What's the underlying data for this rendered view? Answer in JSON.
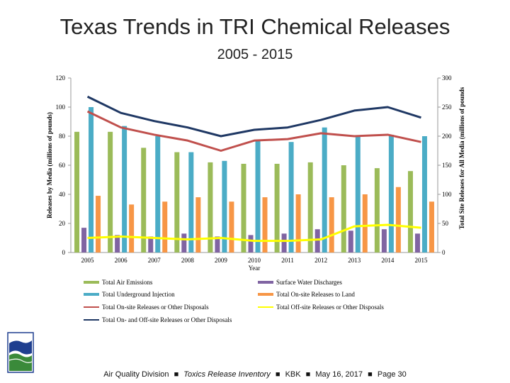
{
  "header": {
    "title": "Texas Trends in TRI Chemical Releases",
    "subtitle": "2005 - 2015"
  },
  "chart_data": {
    "type": "bar",
    "xlabel": "Year",
    "ylabel_left": "Releases by Media (millions of pounds)",
    "ylabel_right": "Total Site Releases for All Media (millions of pounds",
    "ylim_left": [
      0,
      120
    ],
    "ylim_right": [
      0,
      300
    ],
    "yticks_left": [
      "0",
      "20",
      "40",
      "60",
      "80",
      "100",
      "120"
    ],
    "yticks_right": [
      "0",
      "50",
      "100",
      "150",
      "200",
      "250",
      "300"
    ],
    "categories": [
      "2005",
      "2006",
      "2007",
      "2008",
      "2009",
      "2010",
      "2011",
      "2012",
      "2013",
      "2014",
      "2015"
    ],
    "bar_series": [
      {
        "name": "Total Air Emissions",
        "color": "#9bbb59",
        "values": [
          83,
          83,
          72,
          69,
          62,
          61,
          61,
          62,
          60,
          58,
          56
        ]
      },
      {
        "name": "Surface Water Discharges",
        "color": "#8064a2",
        "values": [
          17,
          12,
          11,
          13,
          11,
          12,
          13,
          16,
          15,
          16,
          13
        ]
      },
      {
        "name": "Total Underground Injection",
        "color": "#4bacc6",
        "values": [
          100,
          87,
          80,
          69,
          63,
          77,
          76,
          86,
          80,
          81,
          80
        ]
      },
      {
        "name": "Total On-site Releases to Land",
        "color": "#f79646",
        "values": [
          39,
          33,
          35,
          38,
          35,
          38,
          40,
          38,
          40,
          45,
          35
        ]
      }
    ],
    "line_series": [
      {
        "name": "Total On-site Releases or Other Disposals",
        "color": "#c0504d",
        "axis": "left",
        "values": [
          97,
          86,
          81,
          77,
          70,
          77,
          78,
          82,
          80,
          81,
          76
        ]
      },
      {
        "name": "Total Off-site Releases or Other Disposals",
        "color": "#ffff00",
        "axis": "left",
        "values": [
          10,
          11,
          10,
          9,
          10,
          8,
          8,
          9,
          18,
          19,
          17
        ]
      },
      {
        "name": "Total On- and Off-site Releases or Other Disposals",
        "color": "#1f3864",
        "axis": "right",
        "values": [
          268,
          240,
          226,
          215,
          200,
          211,
          215,
          228,
          244,
          250,
          232
        ]
      }
    ]
  },
  "legend": {
    "items": [
      {
        "label": "Total Air Emissions",
        "color": "#9bbb59",
        "kind": "bar"
      },
      {
        "label": "Surface Water Discharges",
        "color": "#8064a2",
        "kind": "bar"
      },
      {
        "label": "Total Underground Injection",
        "color": "#4bacc6",
        "kind": "bar"
      },
      {
        "label": "Total On-site Releases to Land",
        "color": "#f79646",
        "kind": "bar"
      },
      {
        "label": "Total On-site Releases or Other Disposals",
        "color": "#c0504d",
        "kind": "line"
      },
      {
        "label": "Total Off-site Releases or Other Disposals",
        "color": "#ffff00",
        "kind": "line"
      },
      {
        "label": "Total On- and Off-site Releases or Other Disposals",
        "color": "#1f3864",
        "kind": "line"
      }
    ]
  },
  "footer": {
    "division": "Air Quality Division",
    "inventory": "Toxics Release Inventory",
    "author": "KBK",
    "date": "May 16, 2017",
    "page": "Page 30",
    "separator": "■"
  },
  "logo": {
    "icon": "tceq-logo-icon",
    "colors": [
      "#1f3f8f",
      "#3a8a3a"
    ]
  }
}
